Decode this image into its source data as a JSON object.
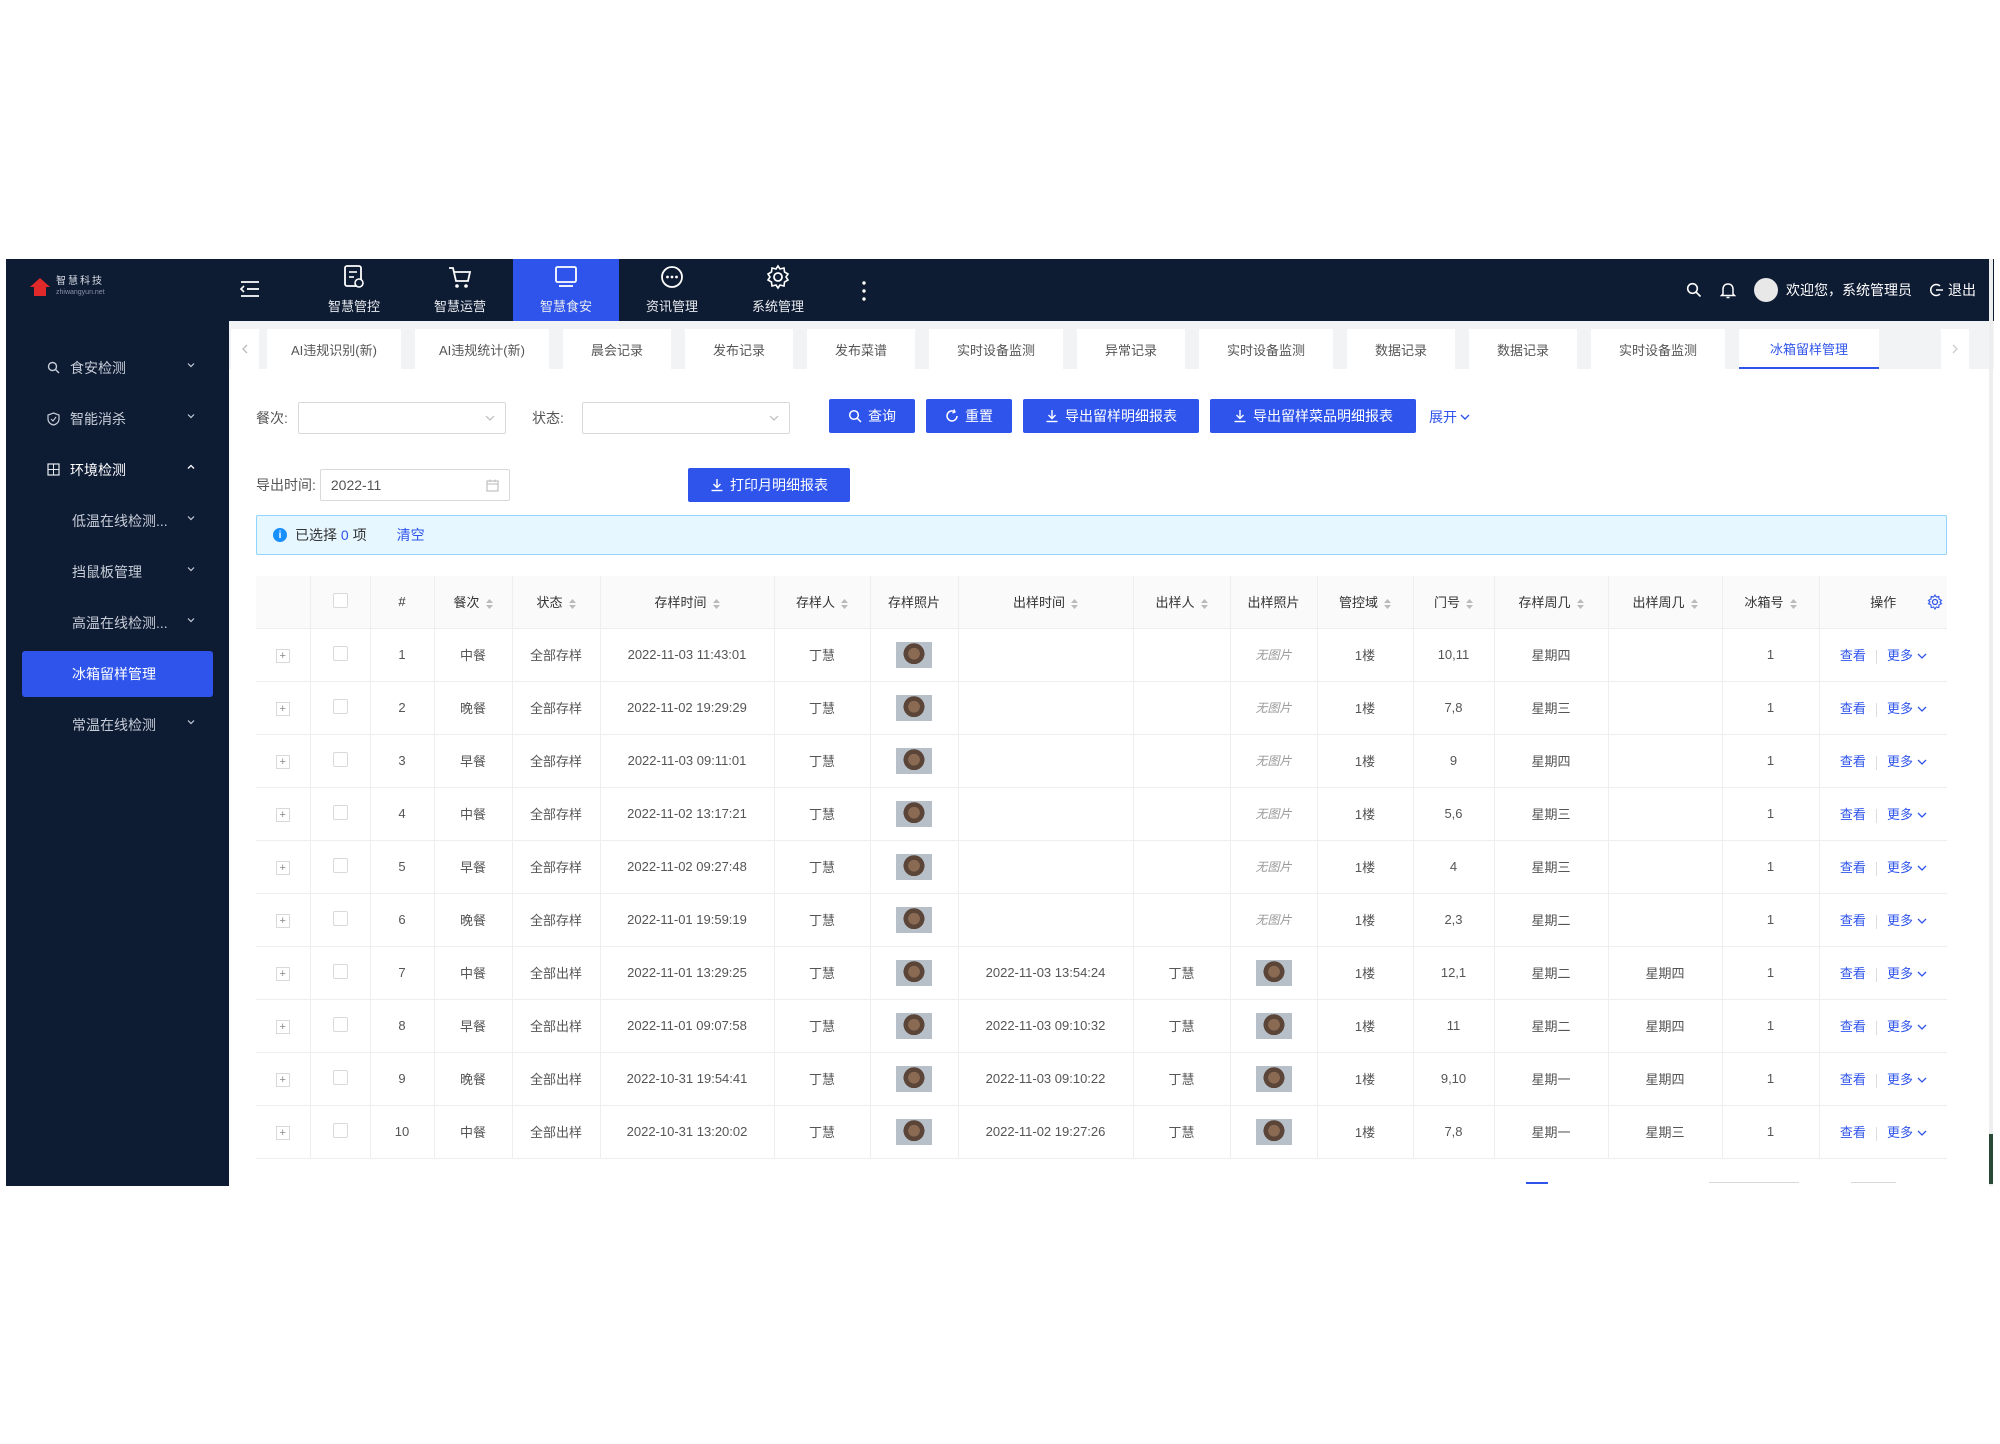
{
  "sidebar": {
    "logo_text": "智慧科技",
    "logo_sub": "zhiwangyun.net",
    "items": [
      {
        "label": "食安检测",
        "icon": "search-icon",
        "expanded": false
      },
      {
        "label": "智能消杀",
        "icon": "shield-icon",
        "expanded": false
      },
      {
        "label": "环境检测",
        "icon": "grid-icon",
        "expanded": true
      }
    ],
    "sub_items": [
      {
        "label": "低温在线检测..."
      },
      {
        "label": "挡鼠板管理"
      },
      {
        "label": "高温在线检测..."
      },
      {
        "label": "冰箱留样管理",
        "active": true
      },
      {
        "label": "常温在线检测"
      }
    ]
  },
  "topbar": {
    "nav": [
      {
        "label": "智慧管控",
        "icon": "document-icon"
      },
      {
        "label": "智慧运营",
        "icon": "cart-icon"
      },
      {
        "label": "智慧食安",
        "icon": "monitor-icon",
        "active": true
      },
      {
        "label": "资讯管理",
        "icon": "chat-icon"
      },
      {
        "label": "系统管理",
        "icon": "gear-icon"
      }
    ],
    "welcome": "欢迎您，系统管理员",
    "logout": "退出"
  },
  "tabs": [
    {
      "label": "AI违规识别(新)"
    },
    {
      "label": "AI违规统计(新)"
    },
    {
      "label": "晨会记录"
    },
    {
      "label": "发布记录"
    },
    {
      "label": "发布菜谱"
    },
    {
      "label": "实时设备监测"
    },
    {
      "label": "异常记录"
    },
    {
      "label": "实时设备监测"
    },
    {
      "label": "数据记录"
    },
    {
      "label": "数据记录"
    },
    {
      "label": "实时设备监测"
    },
    {
      "label": "冰箱留样管理",
      "active": true
    }
  ],
  "filters": {
    "meal_label": "餐次:",
    "meal_value": "",
    "status_label": "状态:",
    "status_value": "",
    "query_btn": "查询",
    "reset_btn": "重置",
    "export1_btn": "导出留样明细报表",
    "export2_btn": "导出留样菜品明细报表",
    "expand_link": "展开",
    "export_time_label": "导出时间:",
    "export_time_value": "2022-11",
    "print_btn": "打印月明细报表"
  },
  "alert": {
    "prefix": "已选择",
    "count": "0",
    "suffix": "项",
    "clear": "清空"
  },
  "table": {
    "headers": [
      "#",
      "餐次",
      "状态",
      "存样时间",
      "存样人",
      "存样照片",
      "出样时间",
      "出样人",
      "出样照片",
      "管控域",
      "门号",
      "存样周几",
      "出样周几",
      "冰箱号",
      "操作"
    ],
    "view_label": "查看",
    "more_label": "更多",
    "no_photo": "无图片",
    "rows": [
      {
        "no": "1",
        "meal": "中餐",
        "status": "全部存样",
        "store_time": "2022-11-03 11:43:01",
        "store_person": "丁慧",
        "out_time": "",
        "out_person": "",
        "out_photo": false,
        "area": "1楼",
        "door": "10,11",
        "store_week": "星期四",
        "out_week": "",
        "fridge": "1"
      },
      {
        "no": "2",
        "meal": "晚餐",
        "status": "全部存样",
        "store_time": "2022-11-02 19:29:29",
        "store_person": "丁慧",
        "out_time": "",
        "out_person": "",
        "out_photo": false,
        "area": "1楼",
        "door": "7,8",
        "store_week": "星期三",
        "out_week": "",
        "fridge": "1"
      },
      {
        "no": "3",
        "meal": "早餐",
        "status": "全部存样",
        "store_time": "2022-11-03 09:11:01",
        "store_person": "丁慧",
        "out_time": "",
        "out_person": "",
        "out_photo": false,
        "area": "1楼",
        "door": "9",
        "store_week": "星期四",
        "out_week": "",
        "fridge": "1"
      },
      {
        "no": "4",
        "meal": "中餐",
        "status": "全部存样",
        "store_time": "2022-11-02 13:17:21",
        "store_person": "丁慧",
        "out_time": "",
        "out_person": "",
        "out_photo": false,
        "area": "1楼",
        "door": "5,6",
        "store_week": "星期三",
        "out_week": "",
        "fridge": "1"
      },
      {
        "no": "5",
        "meal": "早餐",
        "status": "全部存样",
        "store_time": "2022-11-02 09:27:48",
        "store_person": "丁慧",
        "out_time": "",
        "out_person": "",
        "out_photo": false,
        "area": "1楼",
        "door": "4",
        "store_week": "星期三",
        "out_week": "",
        "fridge": "1"
      },
      {
        "no": "6",
        "meal": "晚餐",
        "status": "全部存样",
        "store_time": "2022-11-01 19:59:19",
        "store_person": "丁慧",
        "out_time": "",
        "out_person": "",
        "out_photo": false,
        "area": "1楼",
        "door": "2,3",
        "store_week": "星期二",
        "out_week": "",
        "fridge": "1"
      },
      {
        "no": "7",
        "meal": "中餐",
        "status": "全部出样",
        "store_time": "2022-11-01 13:29:25",
        "store_person": "丁慧",
        "out_time": "2022-11-03 13:54:24",
        "out_person": "丁慧",
        "out_photo": true,
        "area": "1楼",
        "door": "12,1",
        "store_week": "星期二",
        "out_week": "星期四",
        "fridge": "1"
      },
      {
        "no": "8",
        "meal": "早餐",
        "status": "全部出样",
        "store_time": "2022-11-01 09:07:58",
        "store_person": "丁慧",
        "out_time": "2022-11-03 09:10:32",
        "out_person": "丁慧",
        "out_photo": true,
        "area": "1楼",
        "door": "11",
        "store_week": "星期二",
        "out_week": "星期四",
        "fridge": "1"
      },
      {
        "no": "9",
        "meal": "晚餐",
        "status": "全部出样",
        "store_time": "2022-10-31 19:54:41",
        "store_person": "丁慧",
        "out_time": "2022-11-03 09:10:22",
        "out_person": "丁慧",
        "out_photo": true,
        "area": "1楼",
        "door": "9,10",
        "store_week": "星期一",
        "out_week": "星期四",
        "fridge": "1"
      },
      {
        "no": "10",
        "meal": "中餐",
        "status": "全部出样",
        "store_time": "2022-10-31 13:20:02",
        "store_person": "丁慧",
        "out_time": "2022-11-02 19:27:26",
        "out_person": "丁慧",
        "out_photo": true,
        "area": "1楼",
        "door": "7,8",
        "store_week": "星期一",
        "out_week": "星期三",
        "fridge": "1"
      }
    ]
  }
}
